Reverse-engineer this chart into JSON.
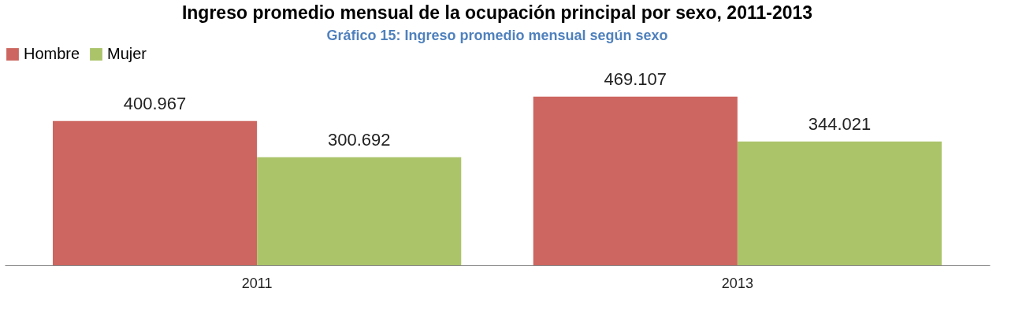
{
  "chart_data": {
    "type": "bar",
    "title": "Ingreso promedio mensual de la ocupación principal por sexo, 2011-2013",
    "annotations": [
      "Gráfico 15: Ingreso promedio mensual según sexo"
    ],
    "categories": [
      "2011",
      "2013"
    ],
    "series": [
      {
        "name": "Hombre",
        "color": "#cd6660",
        "values": [
          400967,
          469107
        ],
        "value_labels": [
          "400.967",
          "469.107"
        ]
      },
      {
        "name": "Mujer",
        "color": "#abc46a",
        "values": [
          300692,
          344021
        ],
        "value_labels": [
          "300.692",
          "344.021"
        ]
      }
    ],
    "legend": "top",
    "grid": false
  }
}
